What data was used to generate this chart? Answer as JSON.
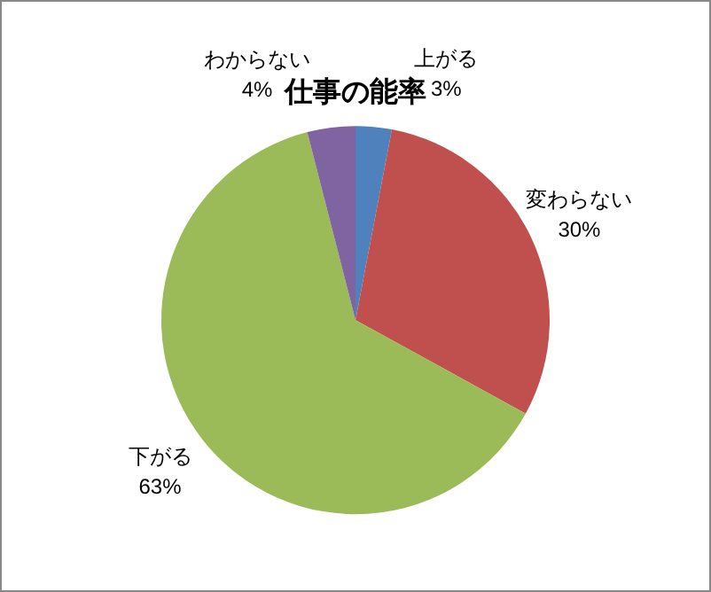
{
  "chart_data": {
    "type": "pie",
    "title": "仕事の能率",
    "categories": [
      "上がる",
      "変わらない",
      "下がる",
      "わからない"
    ],
    "values": [
      3,
      30,
      63,
      4
    ],
    "colors": [
      "#4f81bd",
      "#c0504d",
      "#9bbb59",
      "#8064a2"
    ],
    "value_labels": [
      "3%",
      "30%",
      "63%",
      "4%"
    ],
    "legend": false
  }
}
